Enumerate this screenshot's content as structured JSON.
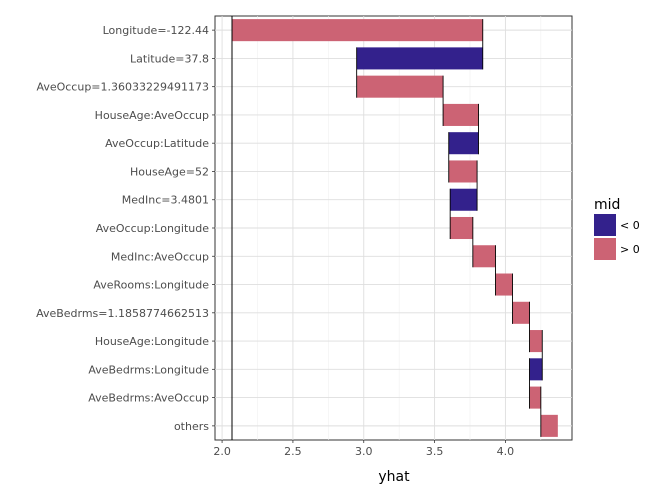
{
  "chart_data": {
    "type": "waterfall-bar",
    "title": "",
    "xlabel": "yhat",
    "ylabel": "",
    "xlim": [
      1.95,
      4.47
    ],
    "x_ticks": [
      2.0,
      2.5,
      3.0,
      3.5,
      4.0
    ],
    "x_tick_labels": [
      "2.0",
      "2.5",
      "3.0",
      "3.5",
      "4.0"
    ],
    "baseline": 2.07,
    "categories": [
      "Longitude=-122.44",
      "Latitude=37.8",
      "AveOccup=1.36033229491173",
      "HouseAge:AveOccup",
      "AveOccup:Latitude",
      "HouseAge=52",
      "MedInc=3.4801",
      "AveOccup:Longitude",
      "MedInc:AveOccup",
      "AveRooms:Longitude",
      "AveBedrms=1.1858774662513",
      "HouseAge:Longitude",
      "AveBedrms:Longitude",
      "AveBedrms:AveOccup",
      "others"
    ],
    "bars": [
      {
        "start": 2.07,
        "end": 3.84,
        "sign": "> 0"
      },
      {
        "start": 3.84,
        "end": 2.95,
        "sign": "< 0"
      },
      {
        "start": 2.95,
        "end": 3.56,
        "sign": "> 0"
      },
      {
        "start": 3.56,
        "end": 3.81,
        "sign": "> 0"
      },
      {
        "start": 3.81,
        "end": 3.6,
        "sign": "< 0"
      },
      {
        "start": 3.6,
        "end": 3.8,
        "sign": "> 0"
      },
      {
        "start": 3.8,
        "end": 3.61,
        "sign": "< 0"
      },
      {
        "start": 3.61,
        "end": 3.77,
        "sign": "> 0"
      },
      {
        "start": 3.77,
        "end": 3.93,
        "sign": "> 0"
      },
      {
        "start": 3.93,
        "end": 4.05,
        "sign": "> 0"
      },
      {
        "start": 4.05,
        "end": 4.17,
        "sign": "> 0"
      },
      {
        "start": 4.17,
        "end": 4.26,
        "sign": "> 0"
      },
      {
        "start": 4.26,
        "end": 4.17,
        "sign": "< 0"
      },
      {
        "start": 4.17,
        "end": 4.25,
        "sign": "> 0"
      },
      {
        "start": 4.25,
        "end": 4.37,
        "sign": "> 0"
      }
    ],
    "legend": {
      "title": "mid",
      "position": "right",
      "entries": [
        {
          "label": "< 0",
          "color": "#33218c"
        },
        {
          "label": "> 0",
          "color": "#cc6374"
        }
      ]
    },
    "grid": true
  }
}
